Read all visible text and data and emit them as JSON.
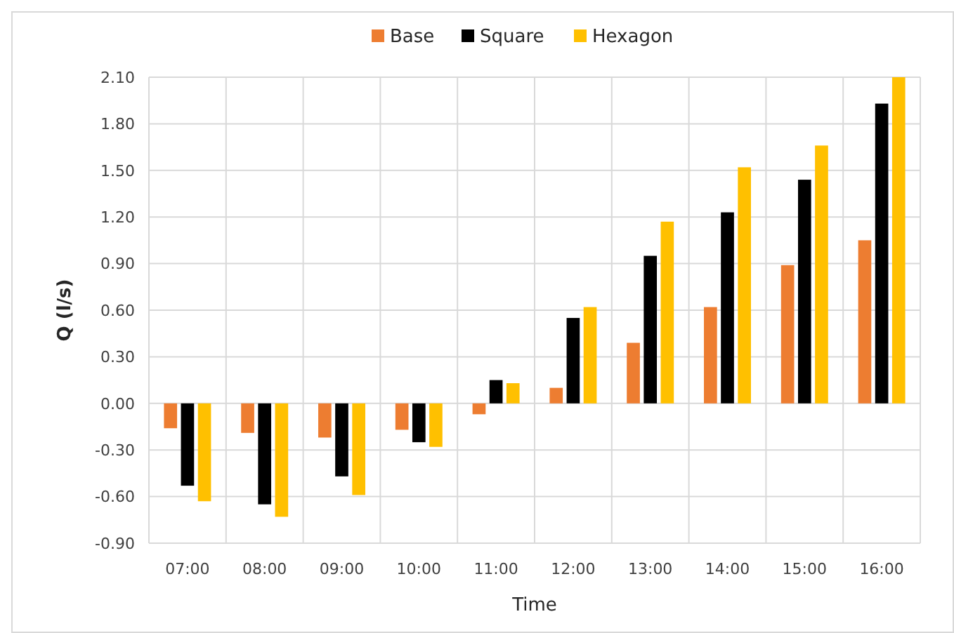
{
  "chart_data": {
    "type": "bar",
    "xlabel": "Time",
    "ylabel": "Q (l/s)",
    "categories": [
      "07:00",
      "08:00",
      "09:00",
      "10:00",
      "11:00",
      "12:00",
      "13:00",
      "14:00",
      "15:00",
      "16:00"
    ],
    "series": [
      {
        "name": "Base",
        "color": "#ed7d31",
        "values": [
          -0.16,
          -0.19,
          -0.22,
          -0.17,
          -0.07,
          0.1,
          0.39,
          0.62,
          0.89,
          1.05
        ]
      },
      {
        "name": "Square",
        "color": "#000000",
        "values": [
          -0.53,
          -0.65,
          -0.47,
          -0.25,
          0.15,
          0.55,
          0.95,
          1.23,
          1.44,
          1.93
        ]
      },
      {
        "name": "Hexagon",
        "color": "#ffc000",
        "values": [
          -0.63,
          -0.73,
          -0.59,
          -0.28,
          0.13,
          0.62,
          1.17,
          1.52,
          1.66,
          2.1
        ]
      }
    ],
    "ylim": [
      -0.9,
      2.1
    ],
    "yticks": [
      {
        "value": -0.9,
        "label": "-0.90"
      },
      {
        "value": -0.6,
        "label": "-0.60"
      },
      {
        "value": -0.3,
        "label": "-0.30"
      },
      {
        "value": 0,
        "label": "0.00"
      },
      {
        "value": 0.3,
        "label": "0.30"
      },
      {
        "value": 0.6,
        "label": "0.60"
      },
      {
        "value": 0.9,
        "label": "0.90"
      },
      {
        "value": 1.2,
        "label": "1.20"
      },
      {
        "value": 1.5,
        "label": "1.50"
      },
      {
        "value": 1.8,
        "label": "1.80"
      },
      {
        "value": 2.1,
        "label": "2.10"
      }
    ],
    "grid": true,
    "legend": "top"
  }
}
